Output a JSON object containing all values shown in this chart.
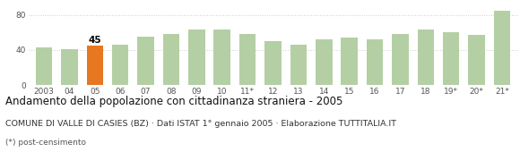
{
  "categories": [
    "2003",
    "04",
    "05",
    "06",
    "07",
    "08",
    "09",
    "10",
    "11*",
    "12",
    "13",
    "14",
    "15",
    "16",
    "17",
    "18",
    "19*",
    "20*",
    "21*"
  ],
  "values": [
    43,
    41,
    45,
    46,
    55,
    58,
    63,
    63,
    58,
    50,
    46,
    52,
    54,
    52,
    58,
    63,
    60,
    57,
    85
  ],
  "bar_colors": [
    "#b5cfa5",
    "#b5cfa5",
    "#e87722",
    "#b5cfa5",
    "#b5cfa5",
    "#b5cfa5",
    "#b5cfa5",
    "#b5cfa5",
    "#b5cfa5",
    "#b5cfa5",
    "#b5cfa5",
    "#b5cfa5",
    "#b5cfa5",
    "#b5cfa5",
    "#b5cfa5",
    "#b5cfa5",
    "#b5cfa5",
    "#b5cfa5",
    "#b5cfa5"
  ],
  "highlight_index": 2,
  "highlight_label": "45",
  "ylim": [
    0,
    90
  ],
  "yticks": [
    0,
    40,
    80
  ],
  "title": "Andamento della popolazione con cittadinanza straniera - 2005",
  "subtitle": "COMUNE DI VALLE DI CASIES (BZ) · Dati ISTAT 1° gennaio 2005 · Elaborazione TUTTITALIA.IT",
  "footnote": "(*) post-censimento",
  "background_color": "#ffffff",
  "grid_color": "#cccccc",
  "title_fontsize": 8.5,
  "subtitle_fontsize": 6.8,
  "footnote_fontsize": 6.5,
  "tick_fontsize": 6.5
}
